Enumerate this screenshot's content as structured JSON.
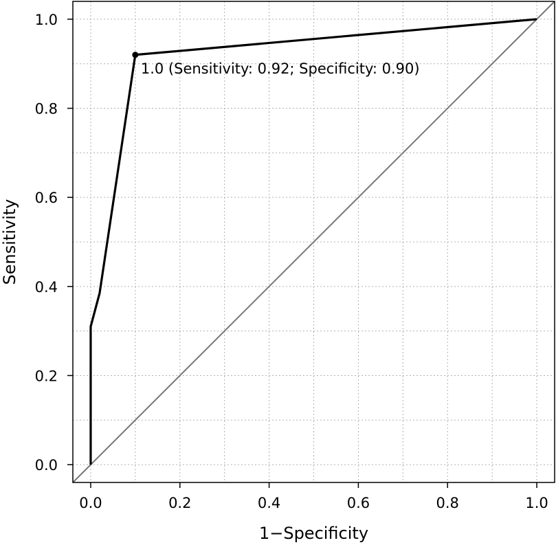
{
  "chart_data": {
    "type": "line",
    "xlabel": "1−Specificity",
    "ylabel": "Sensitivity",
    "xlim": [
      -0.04,
      1.04
    ],
    "ylim": [
      -0.04,
      1.04
    ],
    "grid": true,
    "grid_minor": true,
    "x_ticks": [
      "0.0",
      "0.2",
      "0.4",
      "0.6",
      "0.8",
      "1.0"
    ],
    "y_ticks": [
      "0.0",
      "0.2",
      "0.4",
      "0.6",
      "0.8",
      "1.0"
    ],
    "series": [
      {
        "x": [
          0.0,
          0.0,
          0.0,
          0.02,
          0.1,
          1.0
        ],
        "y": [
          0.0,
          0.0,
          0.31,
          0.385,
          0.92,
          1.0
        ],
        "color": "#000000"
      }
    ],
    "reference_line": {
      "x": [
        -0.04,
        1.04
      ],
      "y": [
        -0.04,
        1.04
      ],
      "color": "#777777"
    },
    "highlight_point": {
      "x": 0.1,
      "y": 0.92,
      "label": "1.0 (Sensitivity: 0.92; Specificity: 0.90)"
    }
  }
}
